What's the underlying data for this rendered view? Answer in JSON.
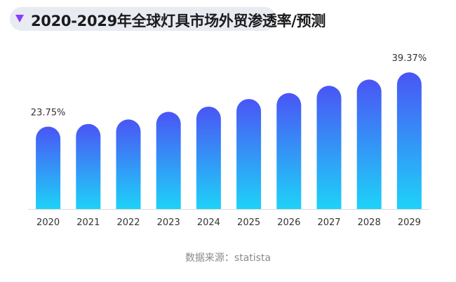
{
  "header": {
    "title": "2020-2029年全球灯具市场外贸渗透率/预测",
    "marker_color": "#8b3dff"
  },
  "source": {
    "label": "数据来源：statista"
  },
  "colors": {
    "bar_top": "#4a55f5",
    "bar_bottom": "#1ed2f8",
    "axis": "#dcdcdc",
    "text": "#333333"
  },
  "chart_data": {
    "type": "bar",
    "title": "2020-2029年全球灯具市场外贸渗透率/预测",
    "categories": [
      "2020",
      "2021",
      "2022",
      "2023",
      "2024",
      "2025",
      "2026",
      "2027",
      "2028",
      "2029"
    ],
    "values": [
      23.75,
      24.5,
      25.8,
      28.0,
      29.5,
      31.7,
      33.4,
      35.5,
      37.3,
      39.37
    ],
    "value_labels": [
      "23.75%",
      "",
      "",
      "",
      "",
      "",
      "",
      "",
      "",
      "39.37%"
    ],
    "unit": "%",
    "ylim": [
      0,
      40
    ],
    "grid": false,
    "legend": "none"
  }
}
